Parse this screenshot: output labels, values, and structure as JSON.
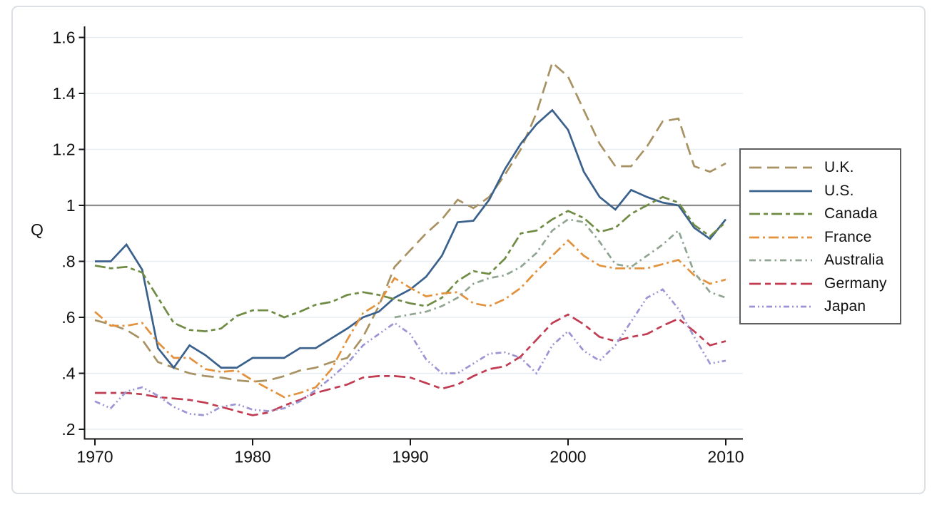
{
  "figure": {
    "background": "#ffffff",
    "card_border_color": "#dcdfe3",
    "axis_color": "#161616",
    "grid_color": "#e7edf2",
    "reference_line_color": "#8d8d8d",
    "text_color": "#111111",
    "legend_border_color": "#5f5f5f"
  },
  "chart_data": {
    "type": "line",
    "title": "",
    "xlabel": "",
    "ylabel": "Q",
    "grid": "horizontal",
    "legend_position": "right",
    "reference_line_y": 1,
    "ylim": [
      0.15,
      1.65
    ],
    "xlim": [
      1969.4,
      2011.1
    ],
    "xticks": [
      {
        "label": "1970",
        "value": 1970
      },
      {
        "label": "1980",
        "value": 1980
      },
      {
        "label": "1990",
        "value": 1990
      },
      {
        "label": "2000",
        "value": 2000
      },
      {
        "label": "2010",
        "value": 2010
      }
    ],
    "yticks": [
      {
        "label": ".2",
        "value": 0.2
      },
      {
        "label": ".4",
        "value": 0.4
      },
      {
        "label": ".6",
        "value": 0.6
      },
      {
        "label": ".8",
        "value": 0.8
      },
      {
        "label": "1",
        "value": 1.0
      },
      {
        "label": "1.2",
        "value": 1.2
      },
      {
        "label": "1.4",
        "value": 1.4
      },
      {
        "label": "1.6",
        "value": 1.6
      }
    ],
    "years": [
      1970,
      1971,
      1972,
      1973,
      1974,
      1975,
      1976,
      1977,
      1978,
      1979,
      1980,
      1981,
      1982,
      1983,
      1984,
      1985,
      1986,
      1987,
      1988,
      1989,
      1990,
      1991,
      1992,
      1993,
      1994,
      1995,
      1996,
      1997,
      1998,
      1999,
      2000,
      2001,
      2002,
      2003,
      2004,
      2005,
      2006,
      2007,
      2008,
      2009,
      2010
    ],
    "series": [
      {
        "name": "U.K.",
        "color": "#a89263",
        "dash": "17,8",
        "values": [
          0.59,
          0.575,
          0.555,
          0.52,
          0.44,
          0.42,
          0.4,
          0.39,
          0.385,
          0.375,
          0.37,
          0.375,
          0.39,
          0.41,
          0.42,
          0.44,
          0.455,
          0.53,
          0.64,
          0.78,
          0.84,
          0.9,
          0.95,
          1.02,
          0.99,
          1.03,
          1.11,
          1.2,
          1.33,
          1.51,
          1.46,
          1.34,
          1.22,
          1.14,
          1.14,
          1.21,
          1.3,
          1.31,
          1.14,
          1.12,
          1.15
        ]
      },
      {
        "name": "U.S.",
        "color": "#3a608c",
        "dash": "",
        "values": [
          0.8,
          0.8,
          0.86,
          0.77,
          0.49,
          0.42,
          0.5,
          0.465,
          0.42,
          0.42,
          0.455,
          0.455,
          0.455,
          0.49,
          0.49,
          0.525,
          0.56,
          0.6,
          0.62,
          0.67,
          0.7,
          0.745,
          0.82,
          0.94,
          0.945,
          1.02,
          1.13,
          1.22,
          1.29,
          1.34,
          1.27,
          1.12,
          1.03,
          0.985,
          1.055,
          1.03,
          1.01,
          1.0,
          0.92,
          0.88,
          0.95
        ]
      },
      {
        "name": "Canada",
        "color": "#6f8b44",
        "dash": "15,5,6,5",
        "values": [
          0.785,
          0.775,
          0.78,
          0.76,
          0.67,
          0.58,
          0.555,
          0.55,
          0.56,
          0.605,
          0.625,
          0.625,
          0.6,
          0.62,
          0.645,
          0.655,
          0.68,
          0.69,
          0.68,
          0.665,
          0.65,
          0.64,
          0.67,
          0.73,
          0.765,
          0.755,
          0.81,
          0.9,
          0.91,
          0.95,
          0.98,
          0.955,
          0.905,
          0.92,
          0.97,
          1.0,
          1.03,
          1.01,
          0.93,
          0.89,
          0.94
        ]
      },
      {
        "name": "France",
        "color": "#e2923d",
        "dash": "14,5,3,5",
        "values": [
          0.62,
          0.57,
          0.57,
          0.58,
          0.51,
          0.455,
          0.455,
          0.415,
          0.405,
          0.41,
          0.375,
          0.345,
          0.315,
          0.33,
          0.35,
          0.415,
          0.52,
          0.615,
          0.65,
          0.74,
          0.705,
          0.675,
          0.685,
          0.69,
          0.65,
          0.64,
          0.665,
          0.705,
          0.765,
          0.82,
          0.875,
          0.82,
          0.785,
          0.775,
          0.775,
          0.775,
          0.79,
          0.805,
          0.75,
          0.72,
          0.735
        ]
      },
      {
        "name": "Australia",
        "color": "#90a591",
        "dash": "9,5,2.5,5",
        "values": [
          null,
          null,
          null,
          null,
          null,
          null,
          null,
          null,
          null,
          null,
          null,
          null,
          null,
          null,
          null,
          null,
          null,
          null,
          null,
          0.6,
          0.61,
          0.62,
          0.64,
          0.67,
          0.72,
          0.74,
          0.75,
          0.78,
          0.83,
          0.91,
          0.95,
          0.94,
          0.87,
          0.79,
          0.78,
          0.82,
          0.86,
          0.91,
          0.76,
          0.69,
          0.67
        ]
      },
      {
        "name": "Germany",
        "color": "#c13b51",
        "dash": "16,6,8,6",
        "values": [
          0.33,
          0.33,
          0.33,
          0.325,
          0.315,
          0.31,
          0.305,
          0.295,
          0.28,
          0.265,
          0.25,
          0.26,
          0.285,
          0.305,
          0.33,
          0.345,
          0.36,
          0.385,
          0.39,
          0.39,
          0.385,
          0.365,
          0.345,
          0.36,
          0.39,
          0.415,
          0.425,
          0.46,
          0.52,
          0.58,
          0.61,
          0.575,
          0.53,
          0.515,
          0.53,
          0.54,
          0.57,
          0.595,
          0.55,
          0.5,
          0.515
        ]
      },
      {
        "name": "Japan",
        "color": "#9c95d4",
        "dash": "8,4,2,4,2,4",
        "values": [
          0.3,
          0.275,
          0.335,
          0.35,
          0.32,
          0.28,
          0.255,
          0.25,
          0.28,
          0.29,
          0.27,
          0.265,
          0.275,
          0.3,
          0.34,
          0.385,
          0.435,
          0.5,
          0.54,
          0.58,
          0.54,
          0.45,
          0.4,
          0.4,
          0.435,
          0.47,
          0.475,
          0.455,
          0.4,
          0.5,
          0.55,
          0.48,
          0.445,
          0.5,
          0.585,
          0.67,
          0.7,
          0.63,
          0.53,
          0.435,
          0.445
        ]
      }
    ]
  }
}
